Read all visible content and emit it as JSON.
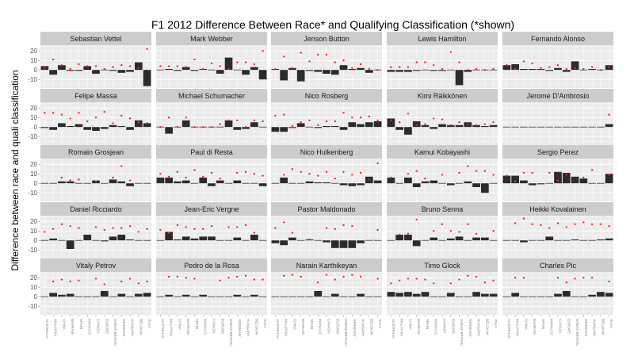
{
  "chart_data": {
    "type": "bar",
    "title": "F1 2012 Difference Between Race* and Qualifying Classification (*shown)",
    "ylabel": "Difference between race and quali classification",
    "xlabel": "",
    "ylim": [
      -19,
      26
    ],
    "yticks": [
      20,
      10,
      0,
      -10
    ],
    "grid": true,
    "legend": "none",
    "layout": {
      "rows": 5,
      "cols": 5
    },
    "colors": {
      "bar": "#2b2b2b",
      "point": "#ff2020",
      "panel": "#ebebeb",
      "strip": "#cccccc",
      "grid": "#ffffff"
    },
    "categories": [
      "AUSTRALIA",
      "MALAYSIA",
      "CHINA",
      "BAHRAIN",
      "SPAIN",
      "MONACO",
      "CANADA",
      "EUROPE",
      "GREAT BRITAIN",
      "GERMANY",
      "HUNGARY",
      "BELGIUM",
      "ITALY"
    ],
    "panels": [
      {
        "name": "Sebastian Vettel",
        "diff": [
          4,
          -5,
          5,
          -1,
          -1,
          4,
          -4,
          0,
          -1,
          -3,
          -2,
          8,
          -17
        ],
        "race": [
          2,
          11,
          5,
          1,
          6,
          4,
          4,
          1,
          3,
          5,
          4,
          2,
          22
        ]
      },
      {
        "name": "Mark Webber",
        "diff": [
          0,
          1,
          -1,
          3,
          -1,
          1,
          0,
          -4,
          13,
          0,
          -5,
          3,
          -10
        ],
        "race": [
          4,
          4,
          4,
          3,
          11,
          1,
          7,
          4,
          1,
          8,
          8,
          6,
          20
        ]
      },
      {
        "name": "Jenson Button",
        "diff": [
          1,
          -11,
          2,
          -12,
          -1,
          -2,
          -4,
          -5,
          5,
          1,
          2,
          -3,
          0
        ],
        "race": [
          1,
          14,
          2,
          18,
          9,
          16,
          16,
          8,
          10,
          2,
          6,
          1,
          0
        ]
      },
      {
        "name": "Lewis Hamilton",
        "diff": [
          -2,
          -2,
          -2,
          -1,
          0,
          -1,
          -1,
          0,
          -16,
          -2,
          0,
          0,
          0
        ],
        "race": [
          3,
          3,
          3,
          8,
          8,
          5,
          1,
          19,
          8,
          0,
          1,
          0,
          1
        ]
      },
      {
        "name": "Fernando Alonso",
        "diff": [
          5,
          6,
          1,
          1,
          1,
          -1,
          2,
          -2,
          9,
          0,
          1,
          0,
          5
        ],
        "race": [
          5,
          1,
          9,
          7,
          2,
          3,
          5,
          1,
          2,
          1,
          3,
          0,
          3
        ]
      },
      {
        "name": "Felipe Massa",
        "diff": [
          -1,
          -3,
          4,
          1,
          3,
          -3,
          -4,
          -2,
          2,
          1,
          -3,
          7,
          4
        ],
        "race": [
          15,
          15,
          13,
          9,
          15,
          6,
          10,
          16,
          4,
          12,
          9,
          5,
          4
        ]
      },
      {
        "name": "Michael Schumacher",
        "diff": [
          0,
          -7,
          0,
          7,
          0,
          0,
          0,
          0,
          7,
          -3,
          -2,
          5,
          0
        ],
        "race": [
          0,
          10,
          0,
          10,
          0,
          0,
          0,
          3,
          7,
          7,
          0,
          7,
          6
        ]
      },
      {
        "name": "Nico Rosberg",
        "diff": [
          -5,
          -5,
          -1,
          4,
          0,
          -1,
          1,
          1,
          -3,
          5,
          3,
          5,
          6
        ],
        "race": [
          12,
          13,
          1,
          5,
          7,
          2,
          6,
          6,
          15,
          10,
          10,
          11,
          7
        ]
      },
      {
        "name": "Kimi Räikkönen",
        "diff": [
          9,
          -3,
          -8,
          6,
          2,
          -2,
          3,
          2,
          2,
          5,
          2,
          1,
          2
        ],
        "race": [
          7,
          5,
          14,
          2,
          3,
          9,
          8,
          2,
          5,
          3,
          2,
          3,
          5
        ]
      },
      {
        "name": "Jerome D'Ambrosio",
        "diff": [
          0,
          0,
          0,
          0,
          0,
          0,
          0,
          0,
          0,
          0,
          0,
          0,
          3
        ],
        "race": [
          null,
          null,
          null,
          null,
          null,
          null,
          null,
          null,
          null,
          null,
          null,
          null,
          13
        ]
      },
      {
        "name": "Romain Grosjean",
        "diff": [
          0,
          0,
          2,
          2,
          0,
          0,
          3,
          0,
          4,
          2,
          -3,
          0,
          0
        ],
        "race": [
          null,
          null,
          6,
          3,
          4,
          null,
          2,
          null,
          6,
          18,
          3,
          null,
          null
        ]
      },
      {
        "name": "Paul di Resta",
        "diff": [
          6,
          6,
          2,
          3,
          0,
          6,
          -3,
          3,
          0,
          3,
          0,
          0,
          -3
        ],
        "race": [
          10,
          7,
          12,
          6,
          14,
          7,
          11,
          5,
          null,
          11,
          12,
          10,
          8
        ]
      },
      {
        "name": "Nico Hulkenberg",
        "diff": [
          0,
          6,
          0,
          0,
          2,
          1,
          1,
          0,
          -2,
          -3,
          -2,
          7,
          3
        ],
        "race": [
          null,
          9,
          15,
          12,
          10,
          8,
          12,
          5,
          12,
          9,
          11,
          4,
          21
        ]
      },
      {
        "name": "Kamui Kobayashi",
        "diff": [
          6,
          0,
          6,
          -4,
          2,
          3,
          0,
          -2,
          0,
          2,
          -4,
          -10,
          0
        ],
        "race": [
          6,
          null,
          10,
          13,
          5,
          null,
          9,
          null,
          11,
          18,
          13,
          13,
          9
        ]
      },
      {
        "name": "Sergio Perez",
        "diff": [
          8,
          8,
          3,
          -2,
          -1,
          0,
          12,
          11,
          7,
          5,
          0,
          0,
          10
        ],
        "race": [
          8,
          2,
          11,
          11,
          null,
          11,
          3,
          9,
          null,
          6,
          14,
          null,
          9
        ]
      },
      {
        "name": "Daniel Ricciardo",
        "diff": [
          0,
          2,
          0,
          -9,
          0,
          6,
          0,
          -1,
          4,
          6,
          1,
          0,
          0
        ],
        "race": [
          9,
          12,
          17,
          15,
          13,
          null,
          14,
          11,
          13,
          13,
          15,
          9,
          12
        ]
      },
      {
        "name": "Jean-Eric Vergne",
        "diff": [
          0,
          9,
          1,
          4,
          2,
          4,
          4,
          0,
          0,
          3,
          0,
          6,
          0
        ],
        "race": [
          11,
          8,
          16,
          14,
          12,
          12,
          15,
          null,
          14,
          14,
          16,
          8,
          null
        ]
      },
      {
        "name": "Pastor Maldonado",
        "diff": [
          -3,
          -5,
          3,
          0,
          1,
          0,
          -2,
          -8,
          -8,
          -8,
          -3,
          0,
          0
        ],
        "race": [
          13,
          19,
          8,
          null,
          1,
          null,
          13,
          12,
          16,
          15,
          null,
          null,
          11
        ]
      },
      {
        "name": "Bruno Senna",
        "diff": [
          0,
          6,
          6,
          -6,
          0,
          3,
          0,
          2,
          4,
          0,
          3,
          3,
          0
        ],
        "race": [
          null,
          6,
          7,
          22,
          null,
          10,
          17,
          10,
          9,
          17,
          7,
          null,
          10
        ]
      },
      {
        "name": "Heikki Kovalainen",
        "diff": [
          0,
          0,
          -2,
          0,
          0,
          4,
          0,
          0,
          1,
          0,
          0,
          1,
          2
        ],
        "race": [
          null,
          18,
          23,
          17,
          16,
          13,
          18,
          14,
          17,
          19,
          17,
          17,
          15
        ]
      },
      {
        "name": "Vitaly Petrov",
        "diff": [
          0,
          4,
          2,
          3,
          0,
          0,
          0,
          6,
          0,
          3,
          0,
          3,
          4
        ],
        "race": [
          null,
          16,
          18,
          16,
          17,
          null,
          19,
          13,
          null,
          16,
          19,
          14,
          16
        ]
      },
      {
        "name": "Pedro de la Rosa",
        "diff": [
          0,
          2,
          0,
          2,
          0,
          2,
          0,
          0,
          0,
          2,
          0,
          2,
          0
        ],
        "race": [
          null,
          21,
          21,
          20,
          19,
          null,
          null,
          17,
          20,
          21,
          22,
          18,
          18
        ]
      },
      {
        "name": "Narain Karthikeyan",
        "diff": [
          0,
          0,
          0,
          0,
          0,
          6,
          0,
          3,
          0,
          0,
          3,
          0,
          0
        ],
        "race": [
          null,
          22,
          23,
          21,
          null,
          15,
          23,
          18,
          21,
          23,
          21,
          null,
          19
        ]
      },
      {
        "name": "Timo Glock",
        "diff": [
          5,
          4,
          5,
          3,
          5,
          0,
          0,
          4,
          0,
          0,
          5,
          3,
          3
        ],
        "race": [
          14,
          17,
          19,
          19,
          18,
          14,
          null,
          14,
          18,
          22,
          21,
          15,
          17
        ]
      },
      {
        "name": "Charles Pic",
        "diff": [
          0,
          4,
          0,
          0,
          0,
          0,
          3,
          6,
          0,
          0,
          2,
          5,
          4
        ],
        "race": [
          null,
          20,
          20,
          null,
          null,
          null,
          20,
          15,
          19,
          20,
          20,
          null,
          16
        ]
      }
    ]
  }
}
